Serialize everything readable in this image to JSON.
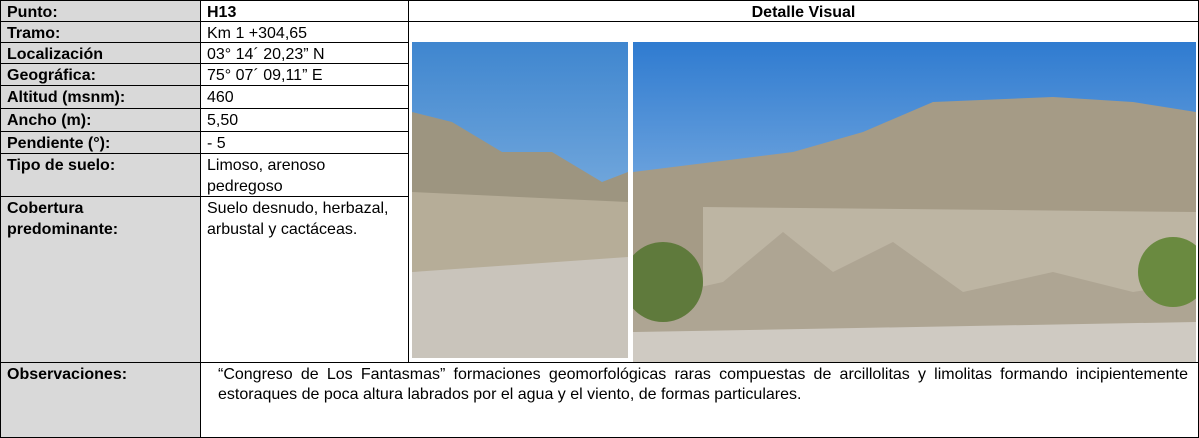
{
  "header": {
    "label": "Punto:",
    "value": "H13",
    "visual_title": "Detalle Visual"
  },
  "rows": [
    {
      "label": "Tramo:",
      "value": "Km 1 +304,65"
    },
    {
      "label": "Localización",
      "value": "03° 14´ 20,23” N"
    },
    {
      "label": "Geográfica:",
      "value": "75° 07´ 09,11” E"
    },
    {
      "label": "Altitud (msnm):",
      "value": "460"
    },
    {
      "label": "Ancho (m):",
      "value": "5,50"
    },
    {
      "label": "Pendiente (°):",
      "value": "- 5"
    },
    {
      "label": "Tipo de suelo:",
      "value": "Limoso, arenoso pedregoso"
    },
    {
      "label": "Cobertura predominante:",
      "value": "Suelo desnudo, herbazal, arbustal y cactáceas."
    }
  ],
  "observations": {
    "label": "Observaciones:",
    "value": "“Congreso de Los Fantasmas” formaciones geomorfológicas raras compuestas de arcillolitas y limolitas formando incipientemente estoraques de poca altura labrados por el agua y el viento, de formas particulares."
  }
}
